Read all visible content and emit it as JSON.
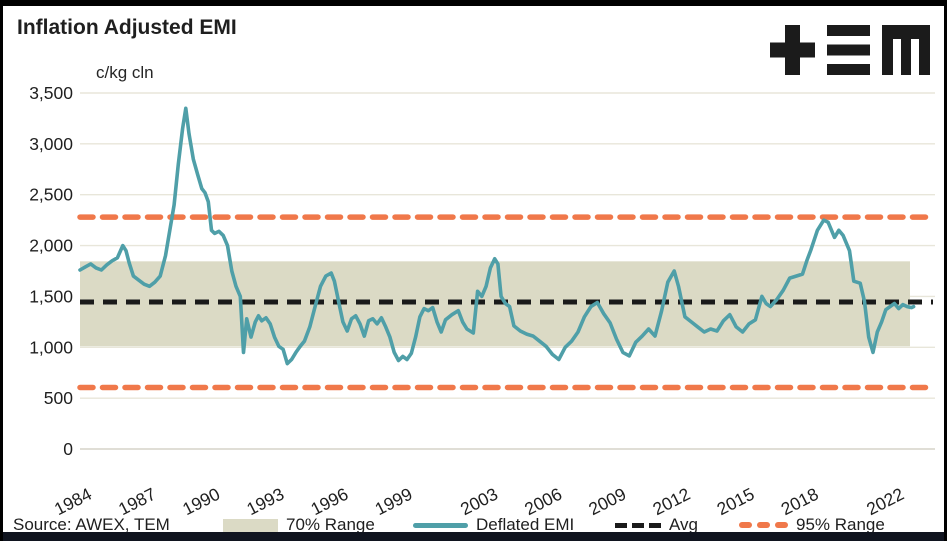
{
  "header": {
    "title": "Inflation Adjusted EMI",
    "logo_name": "TEM"
  },
  "footer": {
    "source": "Source: AWEX, TEM"
  },
  "legend": {
    "band_label": "70% Range",
    "series_label": "Deflated EMI",
    "avg_label": "Avg",
    "range_label": "95% Range"
  },
  "colors": {
    "series": "#4f9fa8",
    "band": "#dbdac5",
    "avg": "#1a1a1a",
    "range95": "#f0784a",
    "grid": "#e8e6da",
    "text": "#1f1f1f"
  },
  "chart_data": {
    "type": "line",
    "title": "Inflation Adjusted EMI",
    "ylabel": "c/kg cln",
    "xlabel": "",
    "ylim": [
      0,
      3500
    ],
    "ytick_values": [
      0,
      500,
      1000,
      1500,
      2000,
      2500,
      3000,
      3500
    ],
    "ytick_labels": [
      "0",
      "500",
      "1,000",
      "1,500",
      "2,000",
      "2,500",
      "3,000",
      "3,500"
    ],
    "xtick_years": [
      1984,
      1987,
      1990,
      1993,
      1996,
      1999,
      2003,
      2006,
      2009,
      2012,
      2015,
      2018,
      2022
    ],
    "x_range": [
      1984,
      2024
    ],
    "grid": true,
    "legend_position": "bottom",
    "avg_line": {
      "label": "Avg",
      "value": 1445
    },
    "range_95": {
      "label": "95% Range",
      "lower": 605,
      "upper": 2280
    },
    "range_70": {
      "label": "70% Range",
      "lower": 1010,
      "upper": 1845
    },
    "series": [
      {
        "name": "Deflated EMI",
        "points": [
          [
            1984.0,
            1760
          ],
          [
            1984.25,
            1790
          ],
          [
            1984.5,
            1820
          ],
          [
            1984.75,
            1780
          ],
          [
            1985.0,
            1760
          ],
          [
            1985.25,
            1810
          ],
          [
            1985.5,
            1850
          ],
          [
            1985.75,
            1880
          ],
          [
            1986.0,
            2000
          ],
          [
            1986.15,
            1950
          ],
          [
            1986.3,
            1830
          ],
          [
            1986.5,
            1700
          ],
          [
            1986.75,
            1660
          ],
          [
            1987.0,
            1620
          ],
          [
            1987.25,
            1600
          ],
          [
            1987.5,
            1640
          ],
          [
            1987.75,
            1700
          ],
          [
            1988.0,
            1900
          ],
          [
            1988.2,
            2150
          ],
          [
            1988.4,
            2400
          ],
          [
            1988.6,
            2800
          ],
          [
            1988.8,
            3150
          ],
          [
            1988.95,
            3350
          ],
          [
            1989.1,
            3100
          ],
          [
            1989.3,
            2850
          ],
          [
            1989.5,
            2700
          ],
          [
            1989.7,
            2560
          ],
          [
            1989.85,
            2520
          ],
          [
            1990.0,
            2430
          ],
          [
            1990.15,
            2150
          ],
          [
            1990.3,
            2120
          ],
          [
            1990.5,
            2140
          ],
          [
            1990.7,
            2100
          ],
          [
            1990.9,
            2000
          ],
          [
            1991.1,
            1750
          ],
          [
            1991.3,
            1600
          ],
          [
            1991.5,
            1500
          ],
          [
            1991.65,
            950
          ],
          [
            1991.8,
            1280
          ],
          [
            1992.0,
            1100
          ],
          [
            1992.2,
            1250
          ],
          [
            1992.35,
            1310
          ],
          [
            1992.5,
            1260
          ],
          [
            1992.7,
            1290
          ],
          [
            1992.9,
            1230
          ],
          [
            1993.1,
            1100
          ],
          [
            1993.3,
            1010
          ],
          [
            1993.5,
            980
          ],
          [
            1993.7,
            840
          ],
          [
            1993.9,
            880
          ],
          [
            1994.1,
            950
          ],
          [
            1994.3,
            1010
          ],
          [
            1994.5,
            1060
          ],
          [
            1994.75,
            1200
          ],
          [
            1995.0,
            1400
          ],
          [
            1995.25,
            1600
          ],
          [
            1995.5,
            1700
          ],
          [
            1995.75,
            1730
          ],
          [
            1995.9,
            1650
          ],
          [
            1996.1,
            1450
          ],
          [
            1996.3,
            1250
          ],
          [
            1996.5,
            1160
          ],
          [
            1996.7,
            1280
          ],
          [
            1996.9,
            1310
          ],
          [
            1997.1,
            1230
          ],
          [
            1997.3,
            1110
          ],
          [
            1997.5,
            1260
          ],
          [
            1997.7,
            1280
          ],
          [
            1997.9,
            1230
          ],
          [
            1998.1,
            1290
          ],
          [
            1998.3,
            1200
          ],
          [
            1998.5,
            1100
          ],
          [
            1998.7,
            950
          ],
          [
            1998.9,
            870
          ],
          [
            1999.1,
            910
          ],
          [
            1999.3,
            880
          ],
          [
            1999.5,
            940
          ],
          [
            1999.7,
            1100
          ],
          [
            1999.9,
            1300
          ],
          [
            2000.1,
            1380
          ],
          [
            2000.3,
            1360
          ],
          [
            2000.5,
            1390
          ],
          [
            2000.7,
            1250
          ],
          [
            2000.9,
            1150
          ],
          [
            2001.1,
            1270
          ],
          [
            2001.4,
            1320
          ],
          [
            2001.7,
            1360
          ],
          [
            2001.9,
            1250
          ],
          [
            2002.1,
            1180
          ],
          [
            2002.4,
            1140
          ],
          [
            2002.6,
            1550
          ],
          [
            2002.8,
            1500
          ],
          [
            2003.0,
            1600
          ],
          [
            2003.2,
            1780
          ],
          [
            2003.4,
            1870
          ],
          [
            2003.55,
            1820
          ],
          [
            2003.7,
            1500
          ],
          [
            2003.9,
            1430
          ],
          [
            2004.1,
            1400
          ],
          [
            2004.3,
            1210
          ],
          [
            2004.6,
            1160
          ],
          [
            2004.9,
            1130
          ],
          [
            2005.2,
            1110
          ],
          [
            2005.5,
            1060
          ],
          [
            2005.8,
            1010
          ],
          [
            2006.1,
            930
          ],
          [
            2006.4,
            880
          ],
          [
            2006.7,
            1000
          ],
          [
            2007.0,
            1060
          ],
          [
            2007.3,
            1150
          ],
          [
            2007.6,
            1300
          ],
          [
            2007.9,
            1400
          ],
          [
            2008.2,
            1440
          ],
          [
            2008.5,
            1330
          ],
          [
            2008.8,
            1240
          ],
          [
            2009.1,
            1080
          ],
          [
            2009.4,
            950
          ],
          [
            2009.7,
            915
          ],
          [
            2010.0,
            1050
          ],
          [
            2010.3,
            1110
          ],
          [
            2010.6,
            1180
          ],
          [
            2010.9,
            1110
          ],
          [
            2011.2,
            1350
          ],
          [
            2011.5,
            1640
          ],
          [
            2011.8,
            1750
          ],
          [
            2012.0,
            1600
          ],
          [
            2012.3,
            1300
          ],
          [
            2012.6,
            1250
          ],
          [
            2012.9,
            1200
          ],
          [
            2013.2,
            1150
          ],
          [
            2013.5,
            1180
          ],
          [
            2013.8,
            1160
          ],
          [
            2014.1,
            1260
          ],
          [
            2014.4,
            1320
          ],
          [
            2014.7,
            1200
          ],
          [
            2015.0,
            1150
          ],
          [
            2015.3,
            1230
          ],
          [
            2015.6,
            1270
          ],
          [
            2015.9,
            1500
          ],
          [
            2016.1,
            1430
          ],
          [
            2016.3,
            1400
          ],
          [
            2016.6,
            1470
          ],
          [
            2016.9,
            1560
          ],
          [
            2017.2,
            1680
          ],
          [
            2017.5,
            1700
          ],
          [
            2017.8,
            1720
          ],
          [
            2018.0,
            1850
          ],
          [
            2018.2,
            1960
          ],
          [
            2018.5,
            2150
          ],
          [
            2018.8,
            2250
          ],
          [
            2019.0,
            2230
          ],
          [
            2019.3,
            2080
          ],
          [
            2019.5,
            2150
          ],
          [
            2019.7,
            2100
          ],
          [
            2020.0,
            1950
          ],
          [
            2020.2,
            1650
          ],
          [
            2020.5,
            1630
          ],
          [
            2020.7,
            1450
          ],
          [
            2020.9,
            1100
          ],
          [
            2021.1,
            950
          ],
          [
            2021.3,
            1150
          ],
          [
            2021.5,
            1250
          ],
          [
            2021.7,
            1370
          ],
          [
            2021.9,
            1400
          ],
          [
            2022.1,
            1430
          ],
          [
            2022.3,
            1380
          ],
          [
            2022.5,
            1420
          ],
          [
            2022.7,
            1400
          ],
          [
            2022.9,
            1390
          ],
          [
            2023.0,
            1400
          ]
        ]
      }
    ]
  }
}
